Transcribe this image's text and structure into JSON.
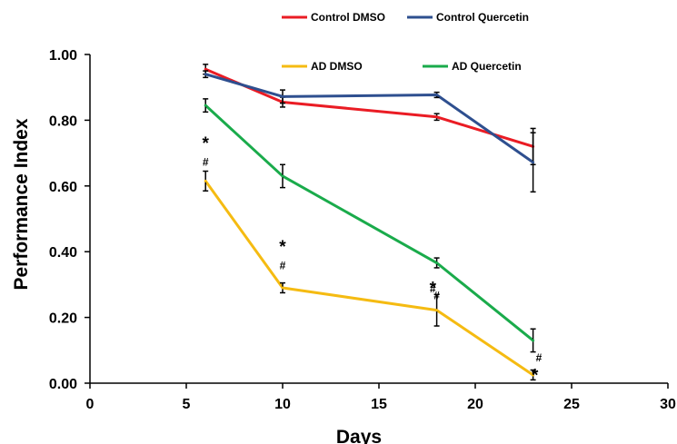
{
  "chart_data": {
    "type": "line",
    "title": "",
    "xlabel": "Days",
    "ylabel": "Performance Index",
    "xlim": [
      0,
      30
    ],
    "ylim": [
      0,
      1.0
    ],
    "xticks": [
      "0",
      "5",
      "10",
      "15",
      "20",
      "25",
      "30"
    ],
    "yticks": [
      "0.00",
      "0.20",
      "0.40",
      "0.60",
      "0.80",
      "1.00"
    ],
    "x": [
      6,
      10,
      18,
      23
    ],
    "grid": false,
    "legend_position": "top",
    "series": [
      {
        "name": "Control DMSO",
        "color": "#ea1c24",
        "values": [
          0.955,
          0.855,
          0.81,
          0.72
        ],
        "errors": [
          0.015,
          0.015,
          0.01,
          0.055
        ]
      },
      {
        "name": "Control Quercetin",
        "color": "#2e4f8f",
        "values": [
          0.94,
          0.872,
          0.877,
          0.672
        ],
        "errors": [
          0.01,
          0.02,
          0.008,
          0.09
        ]
      },
      {
        "name": "AD DMSO",
        "color": "#f5bb12",
        "values": [
          0.615,
          0.29,
          0.222,
          0.025
        ],
        "errors": [
          0.03,
          0.015,
          0.048,
          0.015
        ]
      },
      {
        "name": "AD Quercetin",
        "color": "#1aab4b",
        "values": [
          0.845,
          0.63,
          0.366,
          0.13
        ],
        "errors": [
          0.02,
          0.035,
          0.015,
          0.035
        ]
      }
    ],
    "annotations": [
      {
        "text": "*",
        "x": 6,
        "y": 0.74,
        "size": "big"
      },
      {
        "text": "#",
        "x": 6,
        "y": 0.675,
        "size": "small"
      },
      {
        "text": "*",
        "x": 10,
        "y": 0.425,
        "size": "big"
      },
      {
        "text": "#",
        "x": 10,
        "y": 0.36,
        "size": "small"
      },
      {
        "text": "*",
        "x": 17.8,
        "y": 0.3,
        "size": "big"
      },
      {
        "text": "#",
        "x": 17.8,
        "y": 0.29,
        "size": "small"
      },
      {
        "text": "#",
        "x": 18,
        "y": 0.27,
        "size": "small"
      },
      {
        "text": "#",
        "x": 23.3,
        "y": 0.08,
        "size": "small"
      },
      {
        "text": "*",
        "x": 23.1,
        "y": 0.035,
        "size": "big"
      }
    ]
  }
}
